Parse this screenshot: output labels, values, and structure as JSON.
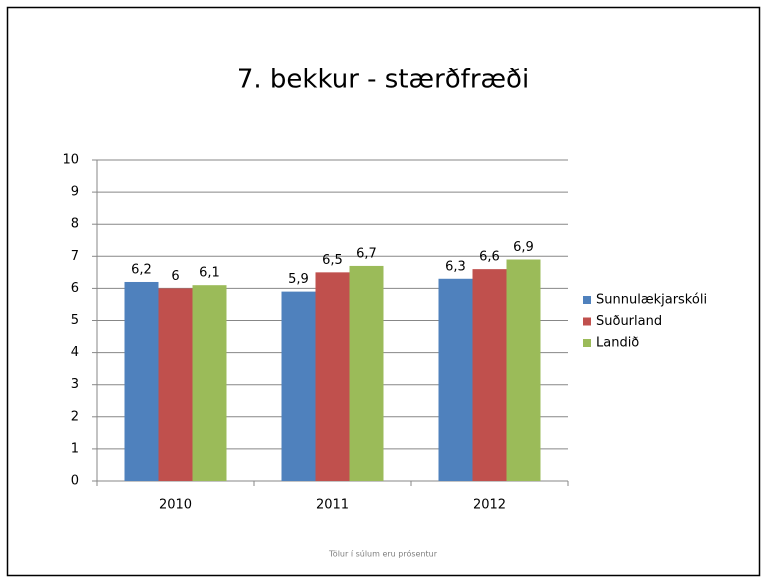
{
  "chart_data": {
    "type": "bar",
    "title": "7. bekkur - stærðfræði",
    "categories": [
      "2010",
      "2011",
      "2012"
    ],
    "series": [
      {
        "name": "Sunnulækjarskóli",
        "color": "#4f81bd",
        "values": [
          6.2,
          5.9,
          6.3
        ],
        "value_labels": [
          "6,2",
          "5,9",
          "6,3"
        ]
      },
      {
        "name": "Suðurland",
        "color": "#c0504d",
        "values": [
          6,
          6.5,
          6.6
        ],
        "value_labels": [
          "6",
          "6,5",
          "6,6"
        ]
      },
      {
        "name": "Landið",
        "color": "#9bbb59",
        "values": [
          6.1,
          6.7,
          6.9
        ],
        "value_labels": [
          "6,1",
          "6,7",
          "6,9"
        ]
      }
    ],
    "ylim": [
      0,
      10
    ],
    "yticks": [
      0,
      1,
      2,
      3,
      4,
      5,
      6,
      7,
      8,
      9,
      10
    ],
    "grid": true,
    "legend": "right",
    "footnote": "Tölur í súlum eru prósentur"
  }
}
